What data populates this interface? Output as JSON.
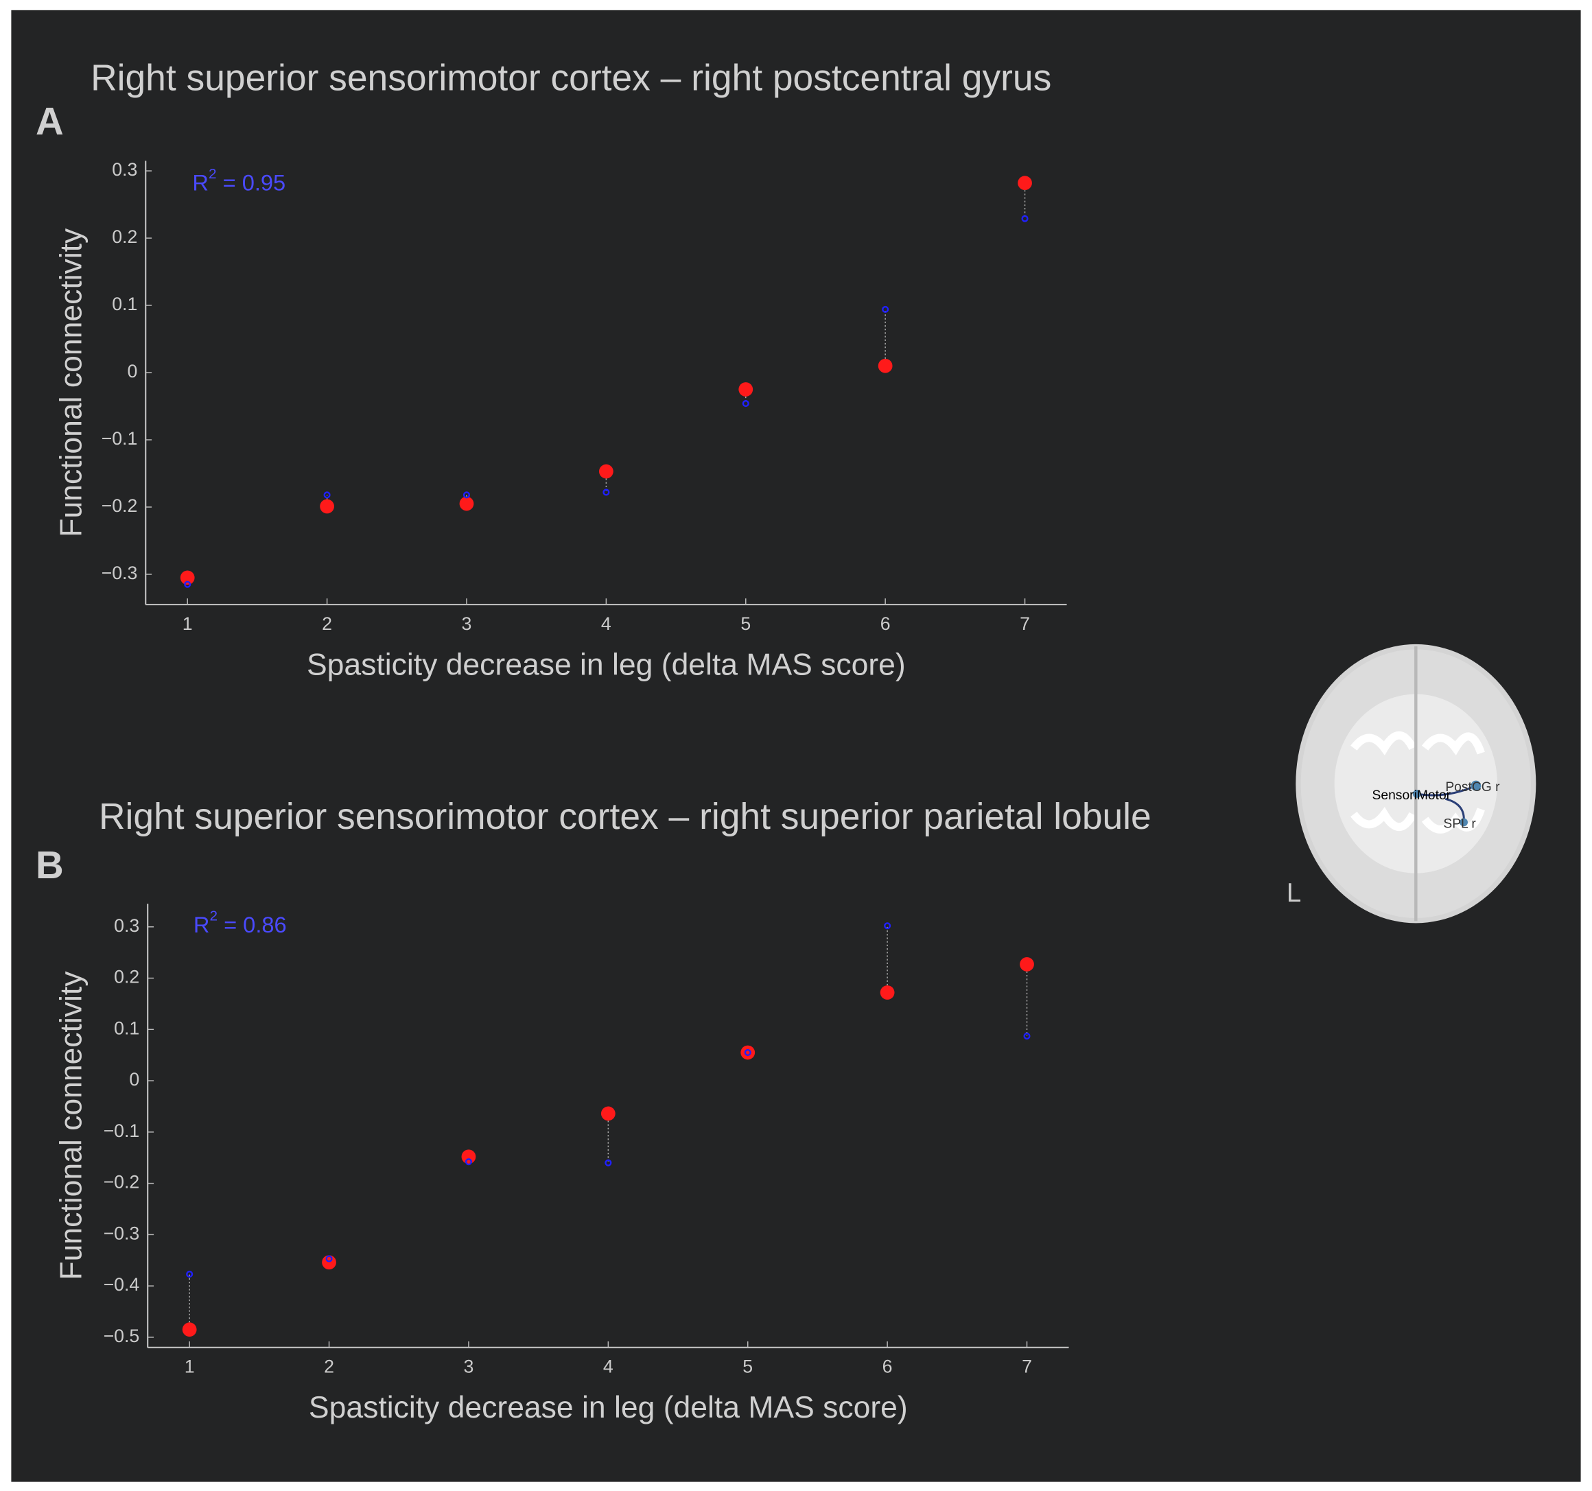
{
  "chart_data": [
    {
      "type": "scatter",
      "panel_label": "A",
      "title": "Right superior sensorimotor cortex – right postcentral gyrus",
      "xlabel": "Spasticity decrease in leg (delta MAS score)",
      "ylabel": "Functional connectivity",
      "annotation": {
        "base": "R",
        "sup": "2",
        "text": " = 0.95",
        "color": "#4a4aff"
      },
      "x": [
        1,
        2,
        3,
        4,
        5,
        6,
        7
      ],
      "series": [
        {
          "color": "#ff1a1a",
          "values": [
            -0.305,
            -0.199,
            -0.195,
            -0.147,
            -0.025,
            0.01,
            0.282
          ]
        },
        {
          "color": "#2020ff",
          "values": [
            -0.315,
            -0.182,
            -0.182,
            -0.178,
            -0.046,
            0.094,
            0.229
          ]
        }
      ],
      "xlim": [
        0.7,
        7.3
      ],
      "xticks": [
        1,
        2,
        3,
        4,
        5,
        6,
        7
      ],
      "ylim": [
        -0.345,
        0.315
      ],
      "yticks": [
        {
          "value": -0.3,
          "label": "−0.3"
        },
        {
          "value": -0.2,
          "label": "−0.2"
        },
        {
          "value": -0.1,
          "label": "−0.1"
        },
        0,
        0.1,
        0.2,
        0.3
      ]
    },
    {
      "type": "scatter",
      "panel_label": "B",
      "title": "Right superior sensorimotor cortex – right superior parietal lobule",
      "xlabel": "Spasticity decrease in leg (delta MAS score)",
      "ylabel": "Functional connectivity",
      "annotation": {
        "base": "R",
        "sup": "2",
        "text": " = 0.86",
        "color": "#4a4aff"
      },
      "x": [
        1,
        2,
        3,
        4,
        5,
        6,
        7
      ],
      "series": [
        {
          "color": "#ff1a1a",
          "values": [
            -0.485,
            -0.354,
            -0.148,
            -0.064,
            0.055,
            0.172,
            0.227
          ]
        },
        {
          "color": "#2020ff",
          "values": [
            -0.377,
            -0.347,
            -0.158,
            -0.16,
            0.055,
            0.302,
            0.087
          ]
        }
      ],
      "xlim": [
        0.7,
        7.3
      ],
      "xticks": [
        1,
        2,
        3,
        4,
        5,
        6,
        7
      ],
      "ylim": [
        -0.52,
        0.345
      ],
      "yticks": [
        {
          "value": -0.5,
          "label": "−0.5"
        },
        {
          "value": -0.4,
          "label": "−0.4"
        },
        {
          "value": -0.3,
          "label": "−0.3"
        },
        {
          "value": -0.2,
          "label": "−0.2"
        },
        {
          "value": -0.1,
          "label": "−0.1"
        },
        0,
        0.1,
        0.2,
        0.3
      ]
    }
  ],
  "brain": {
    "labels": [
      "SensoriMotor",
      "PostCG r",
      "SPL r"
    ],
    "side": "L"
  }
}
